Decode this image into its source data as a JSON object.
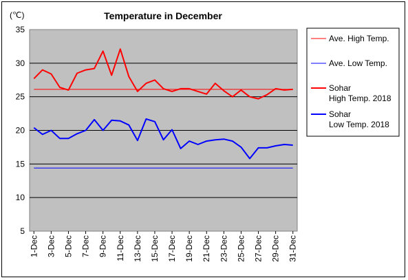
{
  "chart_data": {
    "type": "line",
    "title": "Temperature in December",
    "unit_label": "(℃)",
    "ylim": [
      5,
      35
    ],
    "y_ticks": [
      5,
      10,
      15,
      20,
      25,
      30,
      35
    ],
    "grid": "horizontal",
    "legend_position": "right",
    "plot_background": "#c0c0c0",
    "x": [
      "1-Dec",
      "2-Dec",
      "3-Dec",
      "4-Dec",
      "5-Dec",
      "6-Dec",
      "7-Dec",
      "8-Dec",
      "9-Dec",
      "10-Dec",
      "11-Dec",
      "12-Dec",
      "13-Dec",
      "14-Dec",
      "15-Dec",
      "16-Dec",
      "17-Dec",
      "18-Dec",
      "19-Dec",
      "20-Dec",
      "21-Dec",
      "22-Dec",
      "23-Dec",
      "24-Dec",
      "25-Dec",
      "26-Dec",
      "27-Dec",
      "28-Dec",
      "29-Dec",
      "30-Dec",
      "31-Dec"
    ],
    "x_tick_labels": [
      "1-Dec",
      "3-Dec",
      "5-Dec",
      "7-Dec",
      "9-Dec",
      "11-Dec",
      "13-Dec",
      "15-Dec",
      "17-Dec",
      "19-Dec",
      "21-Dec",
      "23-Dec",
      "25-Dec",
      "27-Dec",
      "29-Dec",
      "31-Dec"
    ],
    "series": [
      {
        "name": "Ave. High Temp.",
        "color": "#ff0000",
        "width": 1,
        "values": [
          26.1,
          26.1,
          26.1,
          26.1,
          26.1,
          26.1,
          26.1,
          26.1,
          26.1,
          26.1,
          26.1,
          26.1,
          26.1,
          26.1,
          26.1,
          26.1,
          26.1,
          26.1,
          26.1,
          26.1,
          26.1,
          26.1,
          26.1,
          26.1,
          26.1,
          26.1,
          26.1,
          26.1,
          26.1,
          26.1,
          26.1
        ]
      },
      {
        "name": "Ave. Low Temp.",
        "color": "#0000ff",
        "width": 1,
        "values": [
          14.4,
          14.4,
          14.4,
          14.4,
          14.4,
          14.4,
          14.4,
          14.4,
          14.4,
          14.4,
          14.4,
          14.4,
          14.4,
          14.4,
          14.4,
          14.4,
          14.4,
          14.4,
          14.4,
          14.4,
          14.4,
          14.4,
          14.4,
          14.4,
          14.4,
          14.4,
          14.4,
          14.4,
          14.4,
          14.4,
          14.4
        ]
      },
      {
        "name": "Sohar High Temp. 2018",
        "label_lines": [
          "Sohar",
          "High Temp. 2018"
        ],
        "color": "#ff0000",
        "width": 2,
        "values": [
          27.7,
          29.0,
          28.4,
          26.4,
          26.0,
          28.5,
          29.0,
          29.2,
          31.8,
          28.2,
          32.1,
          28.0,
          25.8,
          27.0,
          27.5,
          26.2,
          25.8,
          26.2,
          26.2,
          25.8,
          25.4,
          27.0,
          25.9,
          25.0,
          26.0,
          25.0,
          24.7,
          25.3,
          26.2,
          26.0,
          26.1
        ]
      },
      {
        "name": "Sohar Low Temp. 2018",
        "label_lines": [
          "Sohar",
          "Low Temp. 2018"
        ],
        "color": "#0000ff",
        "width": 2,
        "values": [
          20.4,
          19.4,
          20.0,
          18.8,
          18.8,
          19.5,
          20.0,
          21.6,
          20.0,
          21.5,
          21.4,
          20.8,
          18.5,
          21.7,
          21.3,
          18.6,
          20.1,
          17.3,
          18.4,
          17.9,
          18.4,
          18.6,
          18.7,
          18.4,
          17.5,
          15.8,
          17.4,
          17.4,
          17.7,
          17.9,
          17.8
        ]
      }
    ]
  }
}
